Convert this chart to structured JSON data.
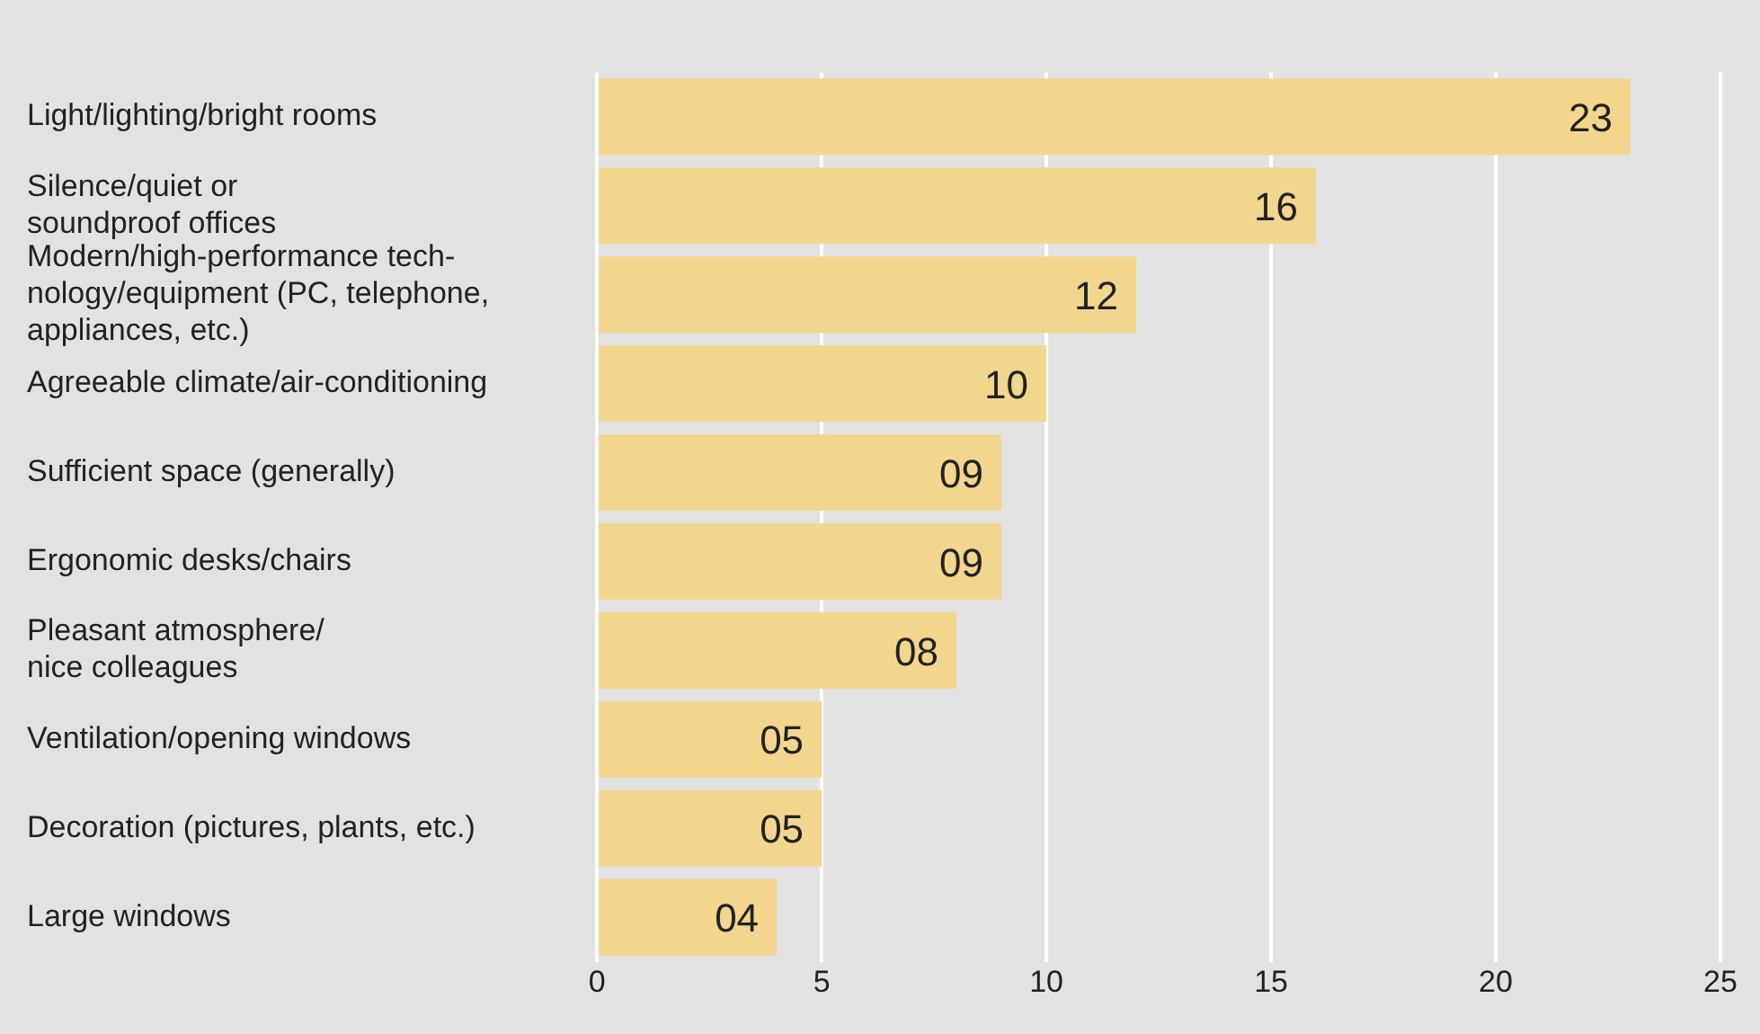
{
  "chart_data": {
    "type": "bar",
    "orientation": "horizontal",
    "categories": [
      "Light/lighting/bright rooms",
      "Silence/quiet or\nsoundproof offices",
      "Modern/high-performance tech-\nnology/equipment (PC, telephone,\nappliances, etc.)",
      "Agreeable climate/air-conditioning",
      "Sufficient space (generally)",
      "Ergonomic desks/chairs",
      "Pleasant atmosphere/\nnice colleagues",
      "Ventilation/opening windows",
      "Decoration (pictures, plants, etc.)",
      "Large windows"
    ],
    "values": [
      23,
      16,
      12,
      10,
      9,
      9,
      8,
      5,
      5,
      4
    ],
    "value_labels": [
      "23",
      "16",
      "12",
      "10",
      "09",
      "09",
      "08",
      "05",
      "05",
      "04"
    ],
    "color": "#f2d68e",
    "xlim": [
      0,
      25
    ],
    "xticks": [
      0,
      5,
      10,
      15,
      20,
      25
    ],
    "grid": "x",
    "legend": false
  }
}
